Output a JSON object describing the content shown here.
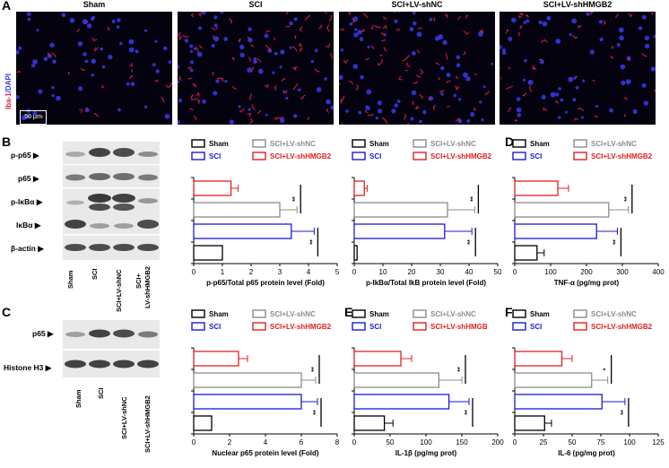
{
  "panels": {
    "a": "A",
    "b": "B",
    "c": "C",
    "d": "D",
    "e": "E",
    "f": "F"
  },
  "micrographs": {
    "groups": [
      "Sham",
      "SCI",
      "SCI+LV-shNC",
      "SCI+LV-shHMGB2"
    ],
    "stain_iba": "Iba-1",
    "stain_dapi": "/DAPI",
    "scale_bar": "50 μm",
    "colors": {
      "iba": "#e0204a",
      "dapi": "#3a3af0",
      "bg": "#05020f"
    }
  },
  "blot_b": {
    "rows": [
      "p-p65",
      "p65",
      "p-IκBα",
      "IκBα",
      "β-actin"
    ],
    "lanes": [
      "Sham",
      "SCI",
      "SCI+LV-shNC",
      "SCI+",
      "LV-shHMGB2"
    ]
  },
  "blot_c": {
    "rows": [
      "p65",
      "Histone H3"
    ],
    "lanes": [
      "Sham",
      "SCI",
      "SCI+LV-shNC",
      "SCI+LV-shHMGB2"
    ]
  },
  "colors": {
    "Sham": "#000000",
    "SCI": "#1a1ad6",
    "SCI+LV-shNC": "#8c8c8c",
    "SCI+LV-shHMGB2": "#e02020"
  },
  "chart_data": [
    {
      "id": "pp65",
      "type": "bar",
      "categories": [
        "Sham",
        "SCI",
        "SCI+LV-shNC",
        "SCI+LV-shHMGB2"
      ],
      "legend": [
        "Sham",
        "SCI+LV-shNC",
        "SCI",
        "SCI+LV-shHMGB2"
      ],
      "values": [
        1.0,
        3.4,
        3.0,
        1.3
      ],
      "errors": [
        0,
        0.8,
        0.6,
        0.25
      ],
      "xlabel": "p-p65/Total p65 protein level (Fold)",
      "xlim": [
        0,
        5
      ],
      "ticks": [
        "0",
        "1",
        "2",
        "3",
        "4",
        "5"
      ],
      "sig": [
        "**",
        "**"
      ]
    },
    {
      "id": "pikba",
      "type": "bar",
      "categories": [
        "Sham",
        "SCI",
        "SCI+LV-shNC",
        "SCI+LV-shHMGB2"
      ],
      "legend": [
        "Sham",
        "SCI+LV-shNC",
        "SCI",
        "SCI+LV-shHMGB2"
      ],
      "values": [
        1,
        31.5,
        32.5,
        3.5
      ],
      "errors": [
        0,
        9.5,
        9.5,
        1.0
      ],
      "xlabel": "p-IkBα/Total IkB protein level (Fold)",
      "xlim": [
        0,
        50
      ],
      "ticks": [
        "0",
        "10",
        "20",
        "30",
        "40",
        "50"
      ],
      "sig": [
        "**",
        "**"
      ]
    },
    {
      "id": "tnf",
      "type": "bar",
      "categories": [
        "Sham",
        "SCI",
        "SCI+LV-shNC",
        "SCI+LV-shHMGB2"
      ],
      "legend": [
        "Sham",
        "SCI+LV-shNC",
        "SCI",
        "SCI+LV-shHMGB2"
      ],
      "values": [
        62,
        228,
        262,
        120
      ],
      "errors": [
        20,
        58,
        55,
        30
      ],
      "xlabel": "TNF-α (pg/mg prot)",
      "xlim": [
        0,
        400
      ],
      "ticks": [
        "0",
        "100",
        "200",
        "300",
        "400"
      ],
      "sig": [
        "**",
        "**"
      ]
    },
    {
      "id": "np65",
      "type": "bar",
      "categories": [
        "Sham",
        "SCI",
        "SCI+LV-shNC",
        "SCI+LV-shHMGB2"
      ],
      "legend": [
        "Sham",
        "SCI+LV-shNC",
        "SCI",
        "SCI+LV-shHMGB2"
      ],
      "values": [
        1.0,
        6.0,
        6.0,
        2.5
      ],
      "errors": [
        0,
        0.9,
        0.8,
        0.5
      ],
      "xlabel": "Nuclear p65 protein level (Fold)",
      "xlim": [
        0,
        8
      ],
      "ticks": [
        "0",
        "2",
        "4",
        "6",
        "8"
      ],
      "sig": [
        "**",
        "**"
      ]
    },
    {
      "id": "il1b",
      "type": "bar",
      "categories": [
        "Sham",
        "SCI",
        "SCI+LV-shNC",
        "SCI+LV-shHMGB"
      ],
      "legend": [
        "Sham",
        "SCI+LV-shNC",
        "SCI",
        "SCI+LV-shHMGB"
      ],
      "values": [
        42,
        132,
        118,
        65
      ],
      "errors": [
        12,
        28,
        32,
        15
      ],
      "xlabel": "IL-1β (pg/mg prot)",
      "xlim": [
        0,
        200
      ],
      "ticks": [
        "0",
        "50",
        "100",
        "150",
        "200"
      ],
      "sig": [
        "**",
        "**"
      ]
    },
    {
      "id": "il6",
      "type": "bar",
      "categories": [
        "Sham",
        "SCI",
        "SCI+LV-shNC",
        "SCI+LV-shHMGB2"
      ],
      "legend": [
        "Sham",
        "SCI+LV-shNC",
        "SCI",
        "SCI+LV-shHMGB2"
      ],
      "values": [
        26,
        76,
        67,
        41
      ],
      "errors": [
        6,
        20,
        14,
        9
      ],
      "xlabel": "IL-6 (pg/mg prot)",
      "xlim": [
        0,
        125
      ],
      "ticks": [
        "0",
        "25",
        "50",
        "75",
        "100",
        "125"
      ],
      "sig": [
        "**",
        "*"
      ]
    }
  ]
}
